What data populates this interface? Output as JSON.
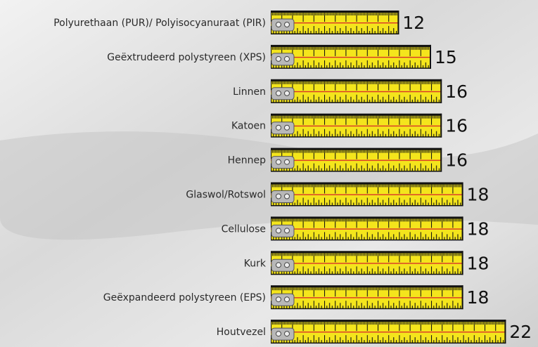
{
  "chart_data": {
    "type": "bar",
    "categories": [
      "Polyurethaan (PUR)/ Polyisocyanuraat (PIR)",
      "Geëxtrudeerd polystyreen (XPS)",
      "Linnen",
      "Katoen",
      "Hennep",
      "Glaswol/Rotswol",
      "Cellulose",
      "Kurk",
      "Geëxpandeerd polystyreen (EPS)",
      "Houtvezel"
    ],
    "values": [
      12,
      15,
      16,
      16,
      16,
      18,
      18,
      18,
      18,
      22
    ],
    "color": "#f4e51c"
  }
}
